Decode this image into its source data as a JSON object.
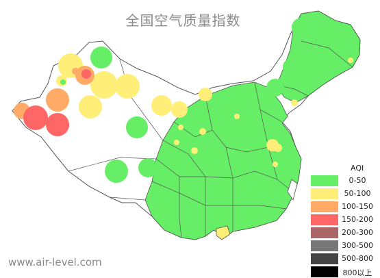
{
  "title": "全国空气质量指数",
  "watermark": "www.air-level.com",
  "legend": {
    "title": "AQI",
    "items": [
      {
        "range": "0-50",
        "color": "#66ee66"
      },
      {
        "range": "50-100",
        "color": "#ffee77"
      },
      {
        "range": "100-150",
        "color": "#ffaa66"
      },
      {
        "range": "150-200",
        "color": "#ff6666"
      },
      {
        "range": "200-300",
        "color": "#aa6666"
      },
      {
        "range": "300-500",
        "color": "#777777"
      },
      {
        "range": "500-800",
        "color": "#444444"
      },
      {
        "range": "800以上",
        "color": "#000000"
      }
    ]
  }
}
